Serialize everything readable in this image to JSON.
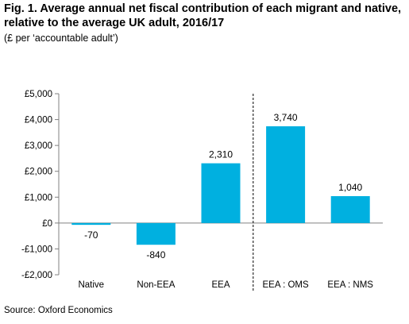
{
  "figure": {
    "title_line1": "Fig. 1. Average annual net fiscal contribution of each migrant and native,",
    "title_line2": "relative to the average UK adult, 2016/17",
    "subtitle": "(£ per ‘accountable adult’)",
    "source": "Source: Oxford Economics"
  },
  "chart_data": {
    "type": "bar",
    "title": "Fig. 1. Average annual net fiscal contribution of each migrant and native, relative to the average UK adult, 2016/17",
    "subtitle": "(£ per ‘accountable adult’)",
    "categories": [
      "Native",
      "Non-EEA",
      "EEA",
      "EEA : OMS",
      "EEA : NMS"
    ],
    "values": [
      -70,
      -840,
      2310,
      3740,
      1040
    ],
    "value_labels": [
      "-70",
      "-840",
      "2,310",
      "3,740",
      "1,040"
    ],
    "ylim": [
      -2000,
      5000
    ],
    "yticks": [
      -2000,
      -1000,
      0,
      1000,
      2000,
      3000,
      4000,
      5000
    ],
    "ytick_labels": [
      "-£2,000",
      "-£1,000",
      "£0",
      "£1,000",
      "£2,000",
      "£3,000",
      "£4,000",
      "£5,000"
    ],
    "bar_color": "#00b0e0",
    "separator": "dashed vertical line between EEA and EEA : OMS",
    "grid": false,
    "legend": "none"
  }
}
